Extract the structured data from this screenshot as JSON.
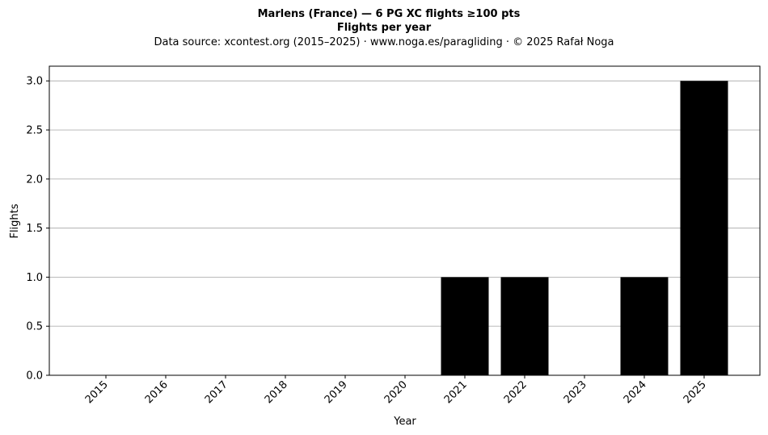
{
  "chart_data": {
    "type": "bar",
    "title": "Marlens (France)  —  6 PG XC flights ≥100 pts",
    "subtitle": "Flights per year",
    "source_note": "Data source: xcontest.org (2015–2025)  ·  www.noga.es/paragliding  ·  © 2025 Rafał Noga",
    "xlabel": "Year",
    "ylabel": "Flights",
    "categories": [
      "2015",
      "2016",
      "2017",
      "2018",
      "2019",
      "2020",
      "2021",
      "2022",
      "2023",
      "2024",
      "2025"
    ],
    "values": [
      0,
      0,
      0,
      0,
      0,
      0,
      1,
      1,
      0,
      1,
      3
    ],
    "ylim": [
      0,
      3.15
    ],
    "yticks": [
      0.0,
      0.5,
      1.0,
      1.5,
      2.0,
      2.5,
      3.0
    ],
    "ytick_labels": [
      "0.0",
      "0.5",
      "1.0",
      "1.5",
      "2.0",
      "2.5",
      "3.0"
    ],
    "grid": "horizontal",
    "legend": "none",
    "bar_color": "#000000",
    "grid_color": "#b0b0b0"
  }
}
